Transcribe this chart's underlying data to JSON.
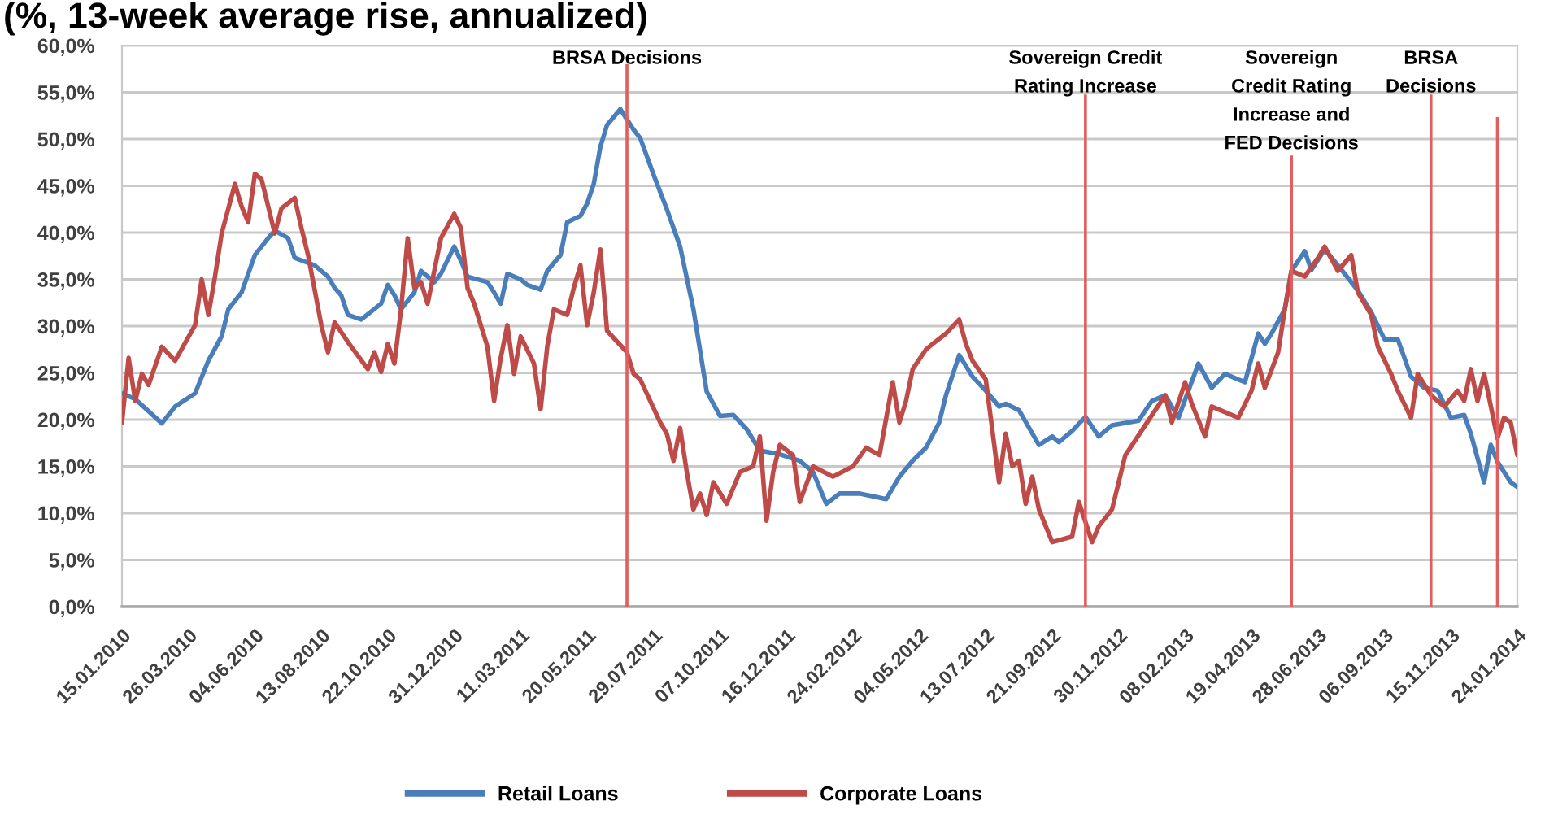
{
  "chart_data": {
    "type": "line",
    "title": "(%, 13-week average rise, annualized)",
    "xlim": [
      "2010-01-15",
      "2014-01-24"
    ],
    "xticks": [
      {
        "value": "2010-01-15",
        "label": "15.01.2010"
      },
      {
        "value": "2010-03-26",
        "label": "26.03.2010"
      },
      {
        "value": "2010-06-04",
        "label": "04.06.2010"
      },
      {
        "value": "2010-08-13",
        "label": "13.08.2010"
      },
      {
        "value": "2010-10-22",
        "label": "22.10.2010"
      },
      {
        "value": "2010-12-31",
        "label": "31.12.2010"
      },
      {
        "value": "2011-03-11",
        "label": "11.03.2011"
      },
      {
        "value": "2011-05-20",
        "label": "20.05.2011"
      },
      {
        "value": "2011-07-29",
        "label": "29.07.2011"
      },
      {
        "value": "2011-10-07",
        "label": "07.10.2011"
      },
      {
        "value": "2011-12-16",
        "label": "16.12.2011"
      },
      {
        "value": "2012-02-24",
        "label": "24.02.2012"
      },
      {
        "value": "2012-05-04",
        "label": "04.05.2012"
      },
      {
        "value": "2012-07-13",
        "label": "13.07.2012"
      },
      {
        "value": "2012-09-21",
        "label": "21.09.2012"
      },
      {
        "value": "2012-11-30",
        "label": "30.11.2012"
      },
      {
        "value": "2013-02-08",
        "label": "08.02.2013"
      },
      {
        "value": "2013-04-19",
        "label": "19.04.2013"
      },
      {
        "value": "2013-06-28",
        "label": "28.06.2013"
      },
      {
        "value": "2013-09-06",
        "label": "06.09.2013"
      },
      {
        "value": "2013-11-15",
        "label": "15.11.2013"
      },
      {
        "value": "2014-01-24",
        "label": "24.01.2014"
      }
    ],
    "ylim": [
      0,
      60
    ],
    "yticks": [
      {
        "value": 0,
        "label": "0,0%"
      },
      {
        "value": 5,
        "label": "5,0%"
      },
      {
        "value": 10,
        "label": "10,0%"
      },
      {
        "value": 15,
        "label": "15,0%"
      },
      {
        "value": 20,
        "label": "20,0%"
      },
      {
        "value": 25,
        "label": "25,0%"
      },
      {
        "value": 30,
        "label": "30,0%"
      },
      {
        "value": 35,
        "label": "35,0%"
      },
      {
        "value": 40,
        "label": "40,0%"
      },
      {
        "value": 45,
        "label": "45,0%"
      },
      {
        "value": 50,
        "label": "50,0%"
      },
      {
        "value": 55,
        "label": "55,0%"
      },
      {
        "value": 60,
        "label": "60,0%"
      }
    ],
    "grid": "y",
    "legend": "bottom",
    "series": [
      {
        "name": "Retail Loans",
        "color": "#4a7ebb",
        "x": [
          "2010-01-15",
          "2010-01-29",
          "2010-02-26",
          "2010-03-12",
          "2010-04-02",
          "2010-04-16",
          "2010-04-30",
          "2010-05-07",
          "2010-05-21",
          "2010-06-04",
          "2010-06-18",
          "2010-06-25",
          "2010-07-09",
          "2010-07-16",
          "2010-08-06",
          "2010-08-20",
          "2010-08-27",
          "2010-09-03",
          "2010-09-10",
          "2010-09-24",
          "2010-10-15",
          "2010-10-22",
          "2010-10-29",
          "2010-11-05",
          "2010-11-19",
          "2010-11-26",
          "2010-12-10",
          "2010-12-17",
          "2010-12-31",
          "2011-01-07",
          "2011-01-14",
          "2011-02-04",
          "2011-02-11",
          "2011-02-18",
          "2011-02-25",
          "2011-03-11",
          "2011-03-18",
          "2011-04-01",
          "2011-04-08",
          "2011-04-22",
          "2011-04-29",
          "2011-05-13",
          "2011-05-20",
          "2011-05-27",
          "2011-06-03",
          "2011-06-10",
          "2011-06-24",
          "2011-07-08",
          "2011-07-15",
          "2011-07-29",
          "2011-08-12",
          "2011-08-26",
          "2011-09-09",
          "2011-09-23",
          "2011-10-07",
          "2011-10-21",
          "2011-11-04",
          "2011-11-18",
          "2011-12-09",
          "2011-12-30",
          "2012-01-13",
          "2012-01-27",
          "2012-02-10",
          "2012-03-02",
          "2012-03-16",
          "2012-03-30",
          "2012-04-13",
          "2012-04-27",
          "2012-05-11",
          "2012-05-25",
          "2012-06-01",
          "2012-06-15",
          "2012-06-29",
          "2012-07-13",
          "2012-07-27",
          "2012-08-03",
          "2012-08-17",
          "2012-09-07",
          "2012-09-21",
          "2012-09-28",
          "2012-10-12",
          "2012-10-26",
          "2012-11-09",
          "2012-11-23",
          "2012-12-21",
          "2013-01-04",
          "2013-01-18",
          "2013-02-01",
          "2013-02-22",
          "2013-03-08",
          "2013-03-22",
          "2013-04-12",
          "2013-04-26",
          "2013-05-03",
          "2013-05-10",
          "2013-05-24",
          "2013-05-31",
          "2013-06-14",
          "2013-06-21",
          "2013-07-05",
          "2013-07-19",
          "2013-08-09",
          "2013-08-23",
          "2013-09-06",
          "2013-09-20",
          "2013-10-04",
          "2013-10-18",
          "2013-11-01",
          "2013-11-15",
          "2013-11-29",
          "2013-12-06",
          "2013-12-20",
          "2013-12-27",
          "2014-01-03",
          "2014-01-17",
          "2014-01-24"
        ],
        "values": [
          22.8,
          22.2,
          19.6,
          21.4,
          22.8,
          26.3,
          28.9,
          31.8,
          33.6,
          37.6,
          39.4,
          40.2,
          39.4,
          37.3,
          36.5,
          35.3,
          34.1,
          33.3,
          31.2,
          30.7,
          32.4,
          34.4,
          33.3,
          31.8,
          33.6,
          35.9,
          34.7,
          35.6,
          38.5,
          37.0,
          35.3,
          34.7,
          33.6,
          32.4,
          35.6,
          35.0,
          34.4,
          33.9,
          35.9,
          37.6,
          41.1,
          41.8,
          43.1,
          45.2,
          49.2,
          51.5,
          53.2,
          51.0,
          50.1,
          46.2,
          42.5,
          38.5,
          31.8,
          23.0,
          20.4,
          20.5,
          19.0,
          16.7,
          16.3,
          15.6,
          14.4,
          11.0,
          12.1,
          12.1,
          11.8,
          11.5,
          13.9,
          15.6,
          17.0,
          19.7,
          22.6,
          26.9,
          24.6,
          23.1,
          21.4,
          21.7,
          21.0,
          17.3,
          18.2,
          17.6,
          18.8,
          20.3,
          18.2,
          19.4,
          19.9,
          22.0,
          22.6,
          20.2,
          26.0,
          23.4,
          24.9,
          24.0,
          29.2,
          28.1,
          29.2,
          31.8,
          35.9,
          38.0,
          36.0,
          38.2,
          36.5,
          33.8,
          31.5,
          28.6,
          28.6,
          24.6,
          23.4,
          23.1,
          20.2,
          20.5,
          18.5,
          13.3,
          17.3,
          15.5,
          13.3,
          12.8
        ]
      },
      {
        "name": "Corporate Loans",
        "color": "#be4b48",
        "x": [
          "2010-01-15",
          "2010-01-22",
          "2010-01-29",
          "2010-02-05",
          "2010-02-12",
          "2010-02-26",
          "2010-03-12",
          "2010-04-02",
          "2010-04-09",
          "2010-04-16",
          "2010-04-23",
          "2010-04-30",
          "2010-05-14",
          "2010-05-21",
          "2010-05-28",
          "2010-06-04",
          "2010-06-11",
          "2010-06-25",
          "2010-07-02",
          "2010-07-16",
          "2010-07-23",
          "2010-07-30",
          "2010-08-13",
          "2010-08-20",
          "2010-08-27",
          "2010-09-10",
          "2010-10-01",
          "2010-10-08",
          "2010-10-15",
          "2010-10-22",
          "2010-10-29",
          "2010-11-05",
          "2010-11-12",
          "2010-11-19",
          "2010-11-26",
          "2010-12-03",
          "2010-12-10",
          "2010-12-17",
          "2010-12-31",
          "2011-01-07",
          "2011-01-14",
          "2011-01-21",
          "2011-02-04",
          "2011-02-11",
          "2011-02-18",
          "2011-02-25",
          "2011-03-04",
          "2011-03-11",
          "2011-03-25",
          "2011-04-01",
          "2011-04-08",
          "2011-04-15",
          "2011-04-29",
          "2011-05-06",
          "2011-05-13",
          "2011-05-20",
          "2011-05-27",
          "2011-06-03",
          "2011-06-10",
          "2011-07-01",
          "2011-07-08",
          "2011-07-15",
          "2011-08-05",
          "2011-08-12",
          "2011-08-19",
          "2011-08-26",
          "2011-09-02",
          "2011-09-09",
          "2011-09-16",
          "2011-09-23",
          "2011-09-30",
          "2011-10-14",
          "2011-10-28",
          "2011-11-11",
          "2011-11-18",
          "2011-11-25",
          "2011-12-02",
          "2011-12-09",
          "2011-12-23",
          "2011-12-30",
          "2012-01-13",
          "2012-02-03",
          "2012-02-24",
          "2012-03-09",
          "2012-03-23",
          "2012-04-06",
          "2012-04-13",
          "2012-04-20",
          "2012-04-27",
          "2012-05-11",
          "2012-05-18",
          "2012-06-01",
          "2012-06-15",
          "2012-06-22",
          "2012-06-29",
          "2012-07-13",
          "2012-07-27",
          "2012-08-03",
          "2012-08-10",
          "2012-08-17",
          "2012-08-24",
          "2012-08-31",
          "2012-09-07",
          "2012-09-21",
          "2012-10-12",
          "2012-10-19",
          "2012-11-02",
          "2012-11-09",
          "2012-11-23",
          "2012-12-07",
          "2012-12-28",
          "2013-01-18",
          "2013-01-25",
          "2013-02-08",
          "2013-02-15",
          "2013-03-01",
          "2013-03-08",
          "2013-04-05",
          "2013-04-19",
          "2013-04-26",
          "2013-05-03",
          "2013-05-17",
          "2013-05-24",
          "2013-05-31",
          "2013-06-14",
          "2013-06-28",
          "2013-07-05",
          "2013-07-19",
          "2013-08-02",
          "2013-08-09",
          "2013-08-23",
          "2013-08-30",
          "2013-09-13",
          "2013-09-20",
          "2013-10-04",
          "2013-10-11",
          "2013-10-25",
          "2013-11-08",
          "2013-11-22",
          "2013-11-29",
          "2013-12-06",
          "2013-12-13",
          "2013-12-20",
          "2014-01-03",
          "2014-01-10",
          "2014-01-17",
          "2014-01-24"
        ],
        "values": [
          19.7,
          26.6,
          22.0,
          24.9,
          23.7,
          27.8,
          26.3,
          30.1,
          35.0,
          31.2,
          35.3,
          39.9,
          45.2,
          42.8,
          41.1,
          46.3,
          45.7,
          39.9,
          42.6,
          43.7,
          40.5,
          37.6,
          30.1,
          27.2,
          30.4,
          28.3,
          25.4,
          27.2,
          25.1,
          28.1,
          26.0,
          31.8,
          39.4,
          34.1,
          34.7,
          32.4,
          35.9,
          39.4,
          42.0,
          40.5,
          34.1,
          32.4,
          27.8,
          22.0,
          26.6,
          30.1,
          24.9,
          28.9,
          26.0,
          21.1,
          27.8,
          31.8,
          31.2,
          34.1,
          36.5,
          30.1,
          33.6,
          38.2,
          29.5,
          27.2,
          24.9,
          24.3,
          19.7,
          18.5,
          15.6,
          19.1,
          14.4,
          10.4,
          12.1,
          9.8,
          13.3,
          11.0,
          14.4,
          15.0,
          18.2,
          9.2,
          14.4,
          17.3,
          16.2,
          11.2,
          15.0,
          13.9,
          15.0,
          17.0,
          16.2,
          24.0,
          19.7,
          22.0,
          25.4,
          27.5,
          28.1,
          29.2,
          30.7,
          28.1,
          26.3,
          24.3,
          13.3,
          18.5,
          15.0,
          15.6,
          11.0,
          13.9,
          10.4,
          6.9,
          7.5,
          11.2,
          6.9,
          8.6,
          10.4,
          16.2,
          19.4,
          22.6,
          19.7,
          24.0,
          21.7,
          18.2,
          21.4,
          20.2,
          23.1,
          26.0,
          23.4,
          27.2,
          31.8,
          35.9,
          35.3,
          37.3,
          38.5,
          35.9,
          37.6,
          33.6,
          31.2,
          27.8,
          24.9,
          23.1,
          20.2,
          24.9,
          22.6,
          21.4,
          23.1,
          22.0,
          25.4,
          22.0,
          24.9,
          18.0,
          20.2,
          19.7,
          16.2
        ]
      }
    ],
    "ref_lines": [
      {
        "axis": "x",
        "value": "2011-07-01",
        "label": "BRSA Decisions",
        "color": "#e25d5d"
      },
      {
        "axis": "x",
        "value": "2012-10-26",
        "label": "Sovereign Credit\nRating Increase",
        "color": "#e25d5d"
      },
      {
        "axis": "x",
        "value": "2013-05-31",
        "label": "Sovereign\nCredit Rating\nIncrease and\nFED Decisions",
        "color": "#e25d5d"
      },
      {
        "axis": "x",
        "value": "2013-10-25",
        "label": "BRSA\nDecisions",
        "color": "#e25d5d"
      },
      {
        "axis": "x",
        "value": "2014-01-03",
        "color": "#e25d5d"
      }
    ]
  }
}
